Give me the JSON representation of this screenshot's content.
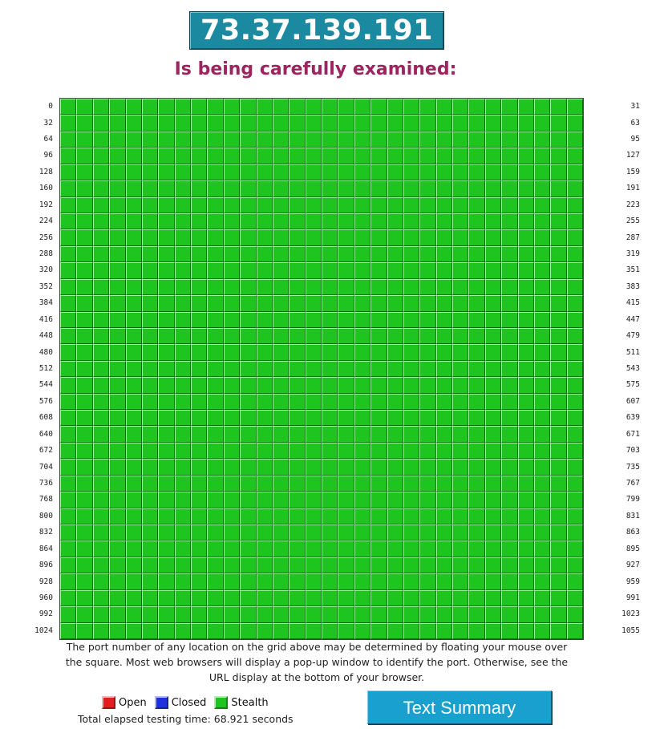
{
  "header": {
    "ip_address": "73.37.139.191",
    "subtitle": "Is being carefully examined:"
  },
  "grid": {
    "columns": 32,
    "rows": 33,
    "start_port": 0,
    "end_port": 1055,
    "row_start_labels": [
      "0",
      "32",
      "64",
      "96",
      "128",
      "160",
      "192",
      "224",
      "256",
      "288",
      "320",
      "352",
      "384",
      "416",
      "448",
      "480",
      "512",
      "544",
      "576",
      "608",
      "640",
      "672",
      "704",
      "736",
      "768",
      "800",
      "832",
      "864",
      "896",
      "928",
      "960",
      "992",
      "1024"
    ],
    "row_end_labels": [
      "31",
      "63",
      "95",
      "127",
      "159",
      "191",
      "223",
      "255",
      "287",
      "319",
      "351",
      "383",
      "415",
      "447",
      "479",
      "511",
      "543",
      "575",
      "607",
      "639",
      "671",
      "703",
      "735",
      "767",
      "799",
      "831",
      "863",
      "895",
      "927",
      "959",
      "991",
      "1023",
      "1055"
    ],
    "port_status": "Stealth",
    "cell_color": "#1ec51e"
  },
  "note": {
    "text": "The port number of any location on the grid above may be determined by floating your mouse over the square. Most web browsers will display a pop-up window to identify the port. Otherwise, see the URL display at the bottom of your browser."
  },
  "legend": {
    "items": [
      {
        "label": "Open",
        "color": "#e02020"
      },
      {
        "label": "Closed",
        "color": "#2032e0"
      },
      {
        "label": "Stealth",
        "color": "#1ec51e"
      }
    ]
  },
  "footer": {
    "elapsed_text": "Total elapsed testing time: 68.921 seconds",
    "summary_button_label": "Text Summary"
  },
  "colors": {
    "ip_box_bg": "#1b8aa0",
    "subtitle": "#9c2560",
    "button_bg": "#1aa0cf"
  }
}
